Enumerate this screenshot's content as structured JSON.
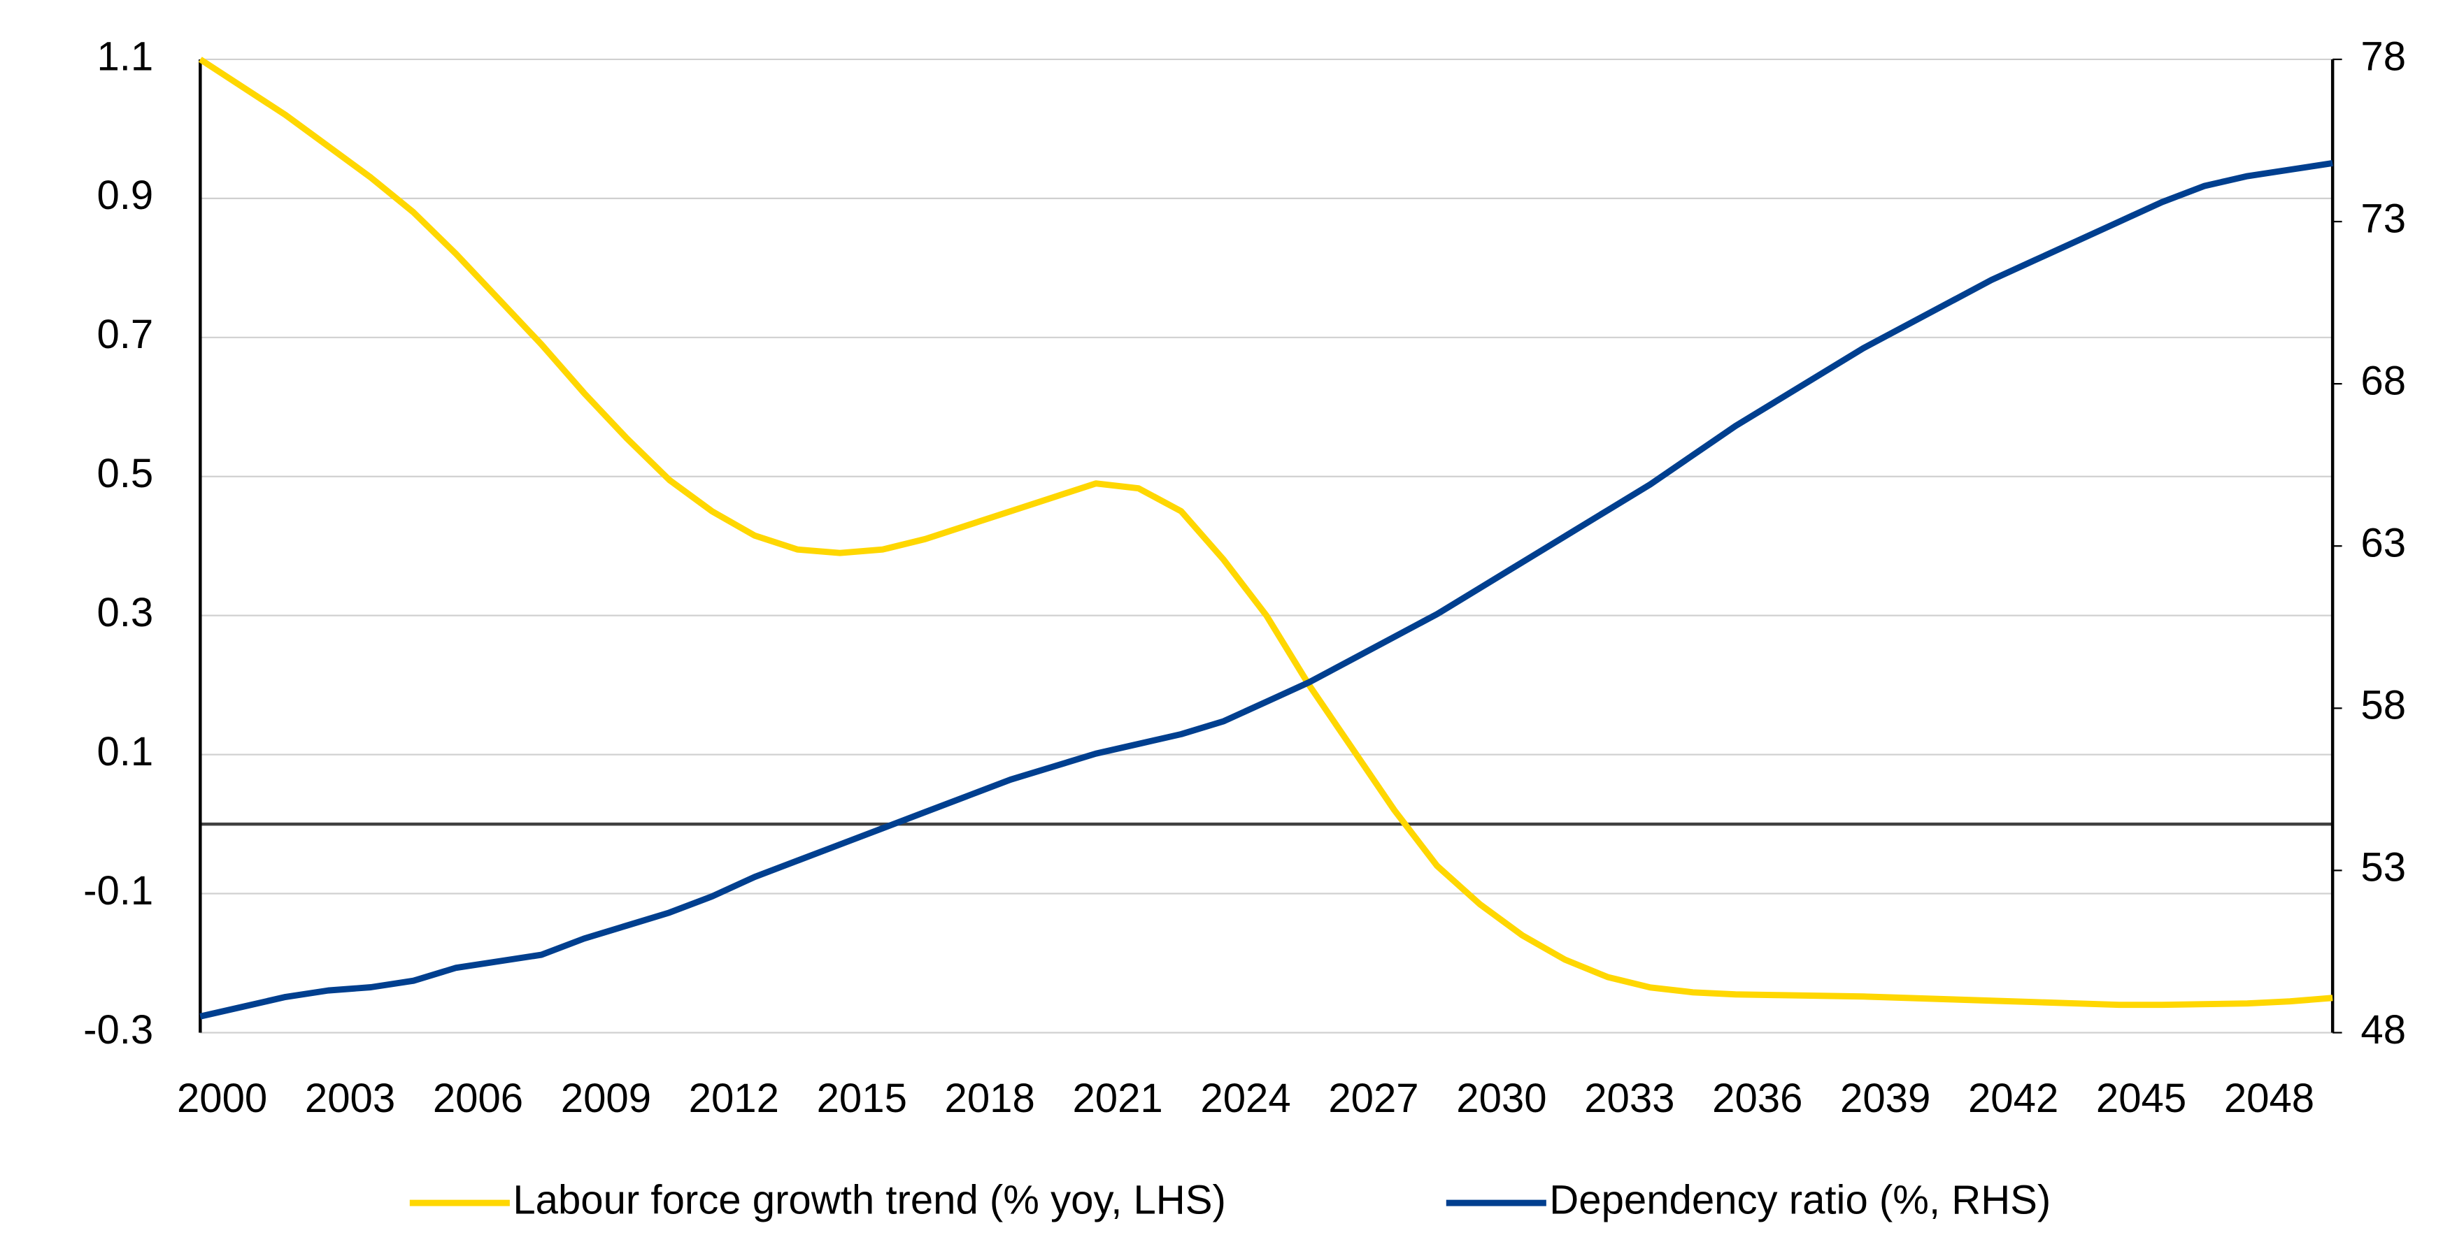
{
  "chart_data": {
    "type": "line",
    "x": [
      2000,
      2001,
      2002,
      2003,
      2004,
      2005,
      2006,
      2007,
      2008,
      2009,
      2010,
      2011,
      2012,
      2013,
      2014,
      2015,
      2016,
      2017,
      2018,
      2019,
      2020,
      2021,
      2022,
      2023,
      2024,
      2025,
      2026,
      2027,
      2028,
      2029,
      2030,
      2031,
      2032,
      2033,
      2034,
      2035,
      2036,
      2037,
      2038,
      2039,
      2040,
      2041,
      2042,
      2043,
      2044,
      2045,
      2046,
      2047,
      2048,
      2049,
      2050
    ],
    "xlim": [
      2000,
      2050
    ],
    "xticks": [
      2000,
      2003,
      2006,
      2009,
      2012,
      2015,
      2018,
      2021,
      2024,
      2027,
      2030,
      2033,
      2036,
      2039,
      2042,
      2045,
      2048
    ],
    "ylim": [
      -0.3,
      1.1
    ],
    "yticks": [
      -0.3,
      -0.1,
      0.1,
      0.3,
      0.5,
      0.7,
      0.9,
      1.1
    ],
    "y2lim": [
      48,
      78
    ],
    "y2ticks": [
      48,
      53,
      58,
      63,
      68,
      73,
      78
    ],
    "grid": true,
    "legend": "bottom",
    "series": [
      {
        "name": "Labour force growth trend (% yoy, LHS)",
        "color": "#ffd700",
        "axis": "y",
        "values": [
          1.1,
          1.06,
          1.02,
          0.975,
          0.93,
          0.88,
          0.82,
          0.755,
          0.69,
          0.62,
          0.555,
          0.495,
          0.45,
          0.415,
          0.395,
          0.39,
          0.395,
          0.41,
          0.43,
          0.45,
          0.47,
          0.49,
          0.483,
          0.45,
          0.38,
          0.3,
          0.2,
          0.11,
          0.02,
          -0.06,
          -0.115,
          -0.16,
          -0.195,
          -0.22,
          -0.235,
          -0.242,
          -0.245,
          -0.246,
          -0.247,
          -0.248,
          -0.25,
          -0.252,
          -0.254,
          -0.256,
          -0.258,
          -0.26,
          -0.26,
          -0.259,
          -0.258,
          -0.255,
          -0.25
        ]
      },
      {
        "name": "Dependency ratio (%, RHS)",
        "color": "#003f8f",
        "axis": "y2",
        "values": [
          48.5,
          48.8,
          49.1,
          49.3,
          49.4,
          49.6,
          50.0,
          50.2,
          50.4,
          50.9,
          51.3,
          51.7,
          52.2,
          52.8,
          53.3,
          53.8,
          54.3,
          54.8,
          55.3,
          55.8,
          56.2,
          56.6,
          56.9,
          57.2,
          57.6,
          58.2,
          58.8,
          59.5,
          60.2,
          60.9,
          61.7,
          62.5,
          63.3,
          64.1,
          64.9,
          65.8,
          66.7,
          67.5,
          68.3,
          69.1,
          69.8,
          70.5,
          71.2,
          71.8,
          72.4,
          73.0,
          73.6,
          74.1,
          74.4,
          74.6,
          74.8
        ]
      }
    ]
  }
}
